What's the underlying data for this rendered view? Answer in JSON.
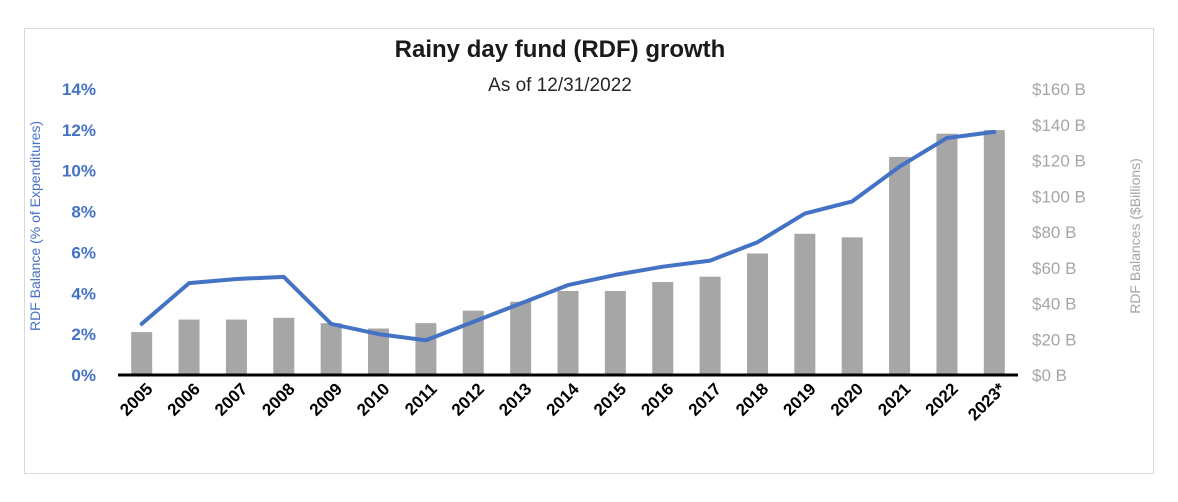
{
  "chart_data": {
    "type": "bar",
    "title": "Rainy day fund (RDF) growth",
    "subtitle": "As of 12/31/2022",
    "categories": [
      "2005",
      "2006",
      "2007",
      "2008",
      "2009",
      "2010",
      "2011",
      "2012",
      "2013",
      "2014",
      "2015",
      "2016",
      "2017",
      "2018",
      "2019",
      "2020",
      "2021",
      "2022",
      "2023*"
    ],
    "series": [
      {
        "name": "RDF Balances ($Billions)",
        "type": "bar",
        "axis": "right",
        "color": "#a6a6a6",
        "values": [
          24,
          31,
          31,
          32,
          29,
          26,
          29,
          36,
          41,
          47,
          47,
          52,
          55,
          68,
          79,
          77,
          122,
          135,
          137
        ]
      },
      {
        "name": "RDF Balance (% of Expenditures)",
        "type": "line",
        "axis": "left",
        "color": "#4472c4",
        "values": [
          2.5,
          4.5,
          4.7,
          4.8,
          2.5,
          2.0,
          1.7,
          2.6,
          3.5,
          4.4,
          4.9,
          5.3,
          5.6,
          6.5,
          7.9,
          8.5,
          10.2,
          11.6,
          11.9
        ]
      }
    ],
    "y_left": {
      "label": "RDF Balance (% of Expenditures)",
      "ylim": [
        0,
        14
      ],
      "ticks": [
        "0%",
        "2%",
        "4%",
        "6%",
        "8%",
        "10%",
        "12%",
        "14%"
      ]
    },
    "y_right": {
      "label": "RDF Balances ($Billions)",
      "ylim": [
        0,
        160
      ],
      "ticks": [
        "$0 B",
        "$20 B",
        "$40 B",
        "$60 B",
        "$80 B",
        "$100 B",
        "$120 B",
        "$140 B",
        "$160 B"
      ]
    },
    "grid": false
  }
}
